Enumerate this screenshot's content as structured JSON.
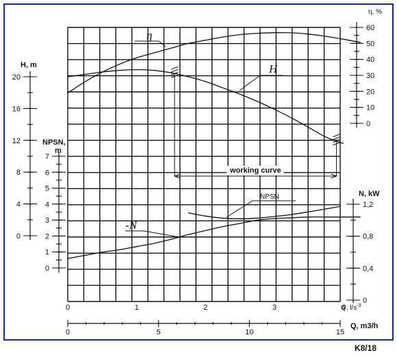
{
  "chart_data": {
    "type": "line",
    "model": "K8/18",
    "x": {
      "label": "Q, l/s",
      "label_suffix": "-3",
      "ticks": [
        0,
        1,
        2,
        3,
        4
      ],
      "range": [
        0,
        4.25
      ]
    },
    "x2": {
      "label": "Q, m3/h",
      "ticks": [
        0,
        5,
        10,
        15
      ],
      "range": [
        0,
        15
      ]
    },
    "axes": {
      "H": {
        "label": "H, m",
        "ticks": [
          0,
          4,
          8,
          12,
          16,
          20
        ],
        "range": [
          0,
          20
        ]
      },
      "NPSN": {
        "label_line1": "NPSN,",
        "label_line2": "m",
        "ticks": [
          0,
          1,
          2,
          3,
          4,
          5,
          6,
          7
        ],
        "range": [
          0,
          7
        ]
      },
      "eta": {
        "label": "η, %",
        "ticks": [
          0,
          10,
          20,
          30,
          40,
          50,
          60
        ],
        "range": [
          0,
          60
        ]
      },
      "N": {
        "label": "N, kW",
        "ticks": [
          "0",
          "0,4",
          "0,8",
          "1,2"
        ],
        "tick_values": [
          0,
          0.4,
          0.8,
          1.2
        ],
        "range": [
          0,
          1.2
        ]
      }
    },
    "series": [
      {
        "name": "H",
        "axis": "H",
        "x": [
          0,
          0.25,
          0.5,
          0.75,
          1.0,
          1.25,
          1.5,
          1.75,
          2.0,
          2.25,
          2.5,
          2.75,
          3.0,
          3.25,
          3.5,
          3.75,
          4.0
        ],
        "y": [
          20.0,
          20.3,
          20.6,
          20.8,
          20.9,
          20.8,
          20.5,
          20.0,
          19.4,
          18.6,
          17.8,
          16.9,
          15.9,
          14.8,
          13.6,
          12.4,
          11.6
        ]
      },
      {
        "name": "η",
        "axis": "eta",
        "x": [
          0,
          0.25,
          0.5,
          0.75,
          1.0,
          1.25,
          1.5,
          1.75,
          2.0,
          2.25,
          2.5,
          2.75,
          3.0,
          3.25,
          3.5,
          3.75,
          4.0,
          4.25
        ],
        "y": [
          19,
          26,
          32,
          37,
          41,
          44,
          47,
          50,
          52,
          54,
          55.5,
          56.3,
          56.7,
          56.6,
          55.8,
          54.4,
          52.6,
          50.6
        ]
      },
      {
        "name": "-N",
        "axis": "N",
        "x": [
          0,
          0.25,
          0.5,
          0.75,
          1.0,
          1.25,
          1.5,
          1.75,
          2.0,
          2.25,
          2.5,
          2.75,
          3.0,
          3.25,
          3.5,
          3.75,
          4.0,
          4.25
        ],
        "y": [
          0.52,
          0.56,
          0.6,
          0.63,
          0.67,
          0.71,
          0.76,
          0.82,
          0.87,
          0.92,
          0.96,
          1.0,
          1.02,
          1.03,
          1.04,
          1.04,
          1.04,
          1.04
        ]
      },
      {
        "name": "NPSN",
        "axis": "NPSN",
        "x": [
          1.75,
          2.0,
          2.25,
          2.5,
          2.75,
          3.0,
          3.25,
          3.5,
          3.75,
          3.95
        ],
        "y": [
          3.45,
          3.25,
          3.12,
          3.08,
          3.12,
          3.22,
          3.35,
          3.52,
          3.7,
          3.85
        ]
      }
    ],
    "working_curve": {
      "label": "working curve",
      "from": 1.55,
      "to": 3.9
    }
  }
}
